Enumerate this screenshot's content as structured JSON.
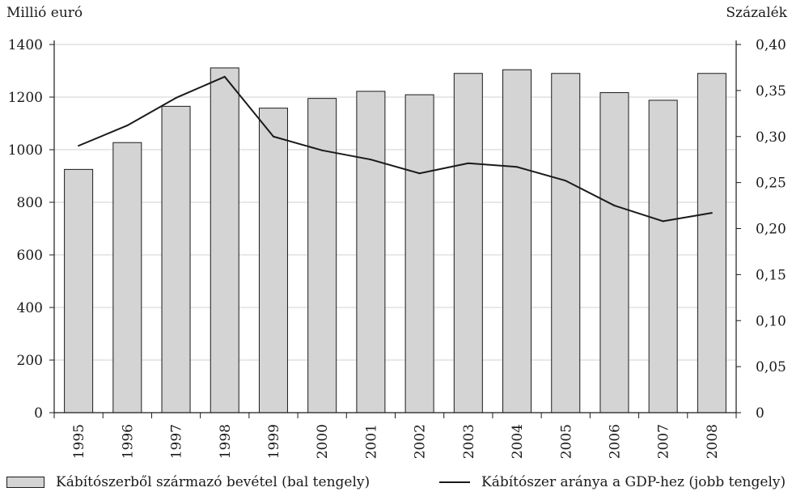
{
  "chart_data": {
    "type": "bar",
    "categories": [
      "1995",
      "1996",
      "1997",
      "1998",
      "1999",
      "2000",
      "2001",
      "2002",
      "2003",
      "2004",
      "2005",
      "2006",
      "2007",
      "2008"
    ],
    "series": [
      {
        "name": "Kábítószerből származó bevétel (bal tengely)",
        "type": "bar",
        "axis": "left",
        "values": [
          925,
          1027,
          1165,
          1311,
          1158,
          1195,
          1222,
          1209,
          1290,
          1304,
          1290,
          1217,
          1188,
          1290
        ]
      },
      {
        "name": "Kábítószer aránya a GDP-hez (jobb tengely)",
        "type": "line",
        "axis": "right",
        "values": [
          0.29,
          0.312,
          0.342,
          0.365,
          0.3,
          0.285,
          0.275,
          0.26,
          0.271,
          0.267,
          0.252,
          0.225,
          0.208,
          0.217
        ]
      }
    ],
    "ylabel": "Millió euró",
    "y2label": "Százalék",
    "ylim": [
      0,
      1400
    ],
    "y2lim": [
      0,
      0.4
    ],
    "yticks": [
      "0",
      "200",
      "400",
      "600",
      "800",
      "1000",
      "1200",
      "1400"
    ],
    "y2ticks": [
      "0",
      "0,05",
      "0,10",
      "0,15",
      "0,20",
      "0,25",
      "0,30",
      "0,35",
      "0,40"
    ],
    "grid": "horizontal",
    "legend_position": "bottom",
    "colors": {
      "bar_fill": "#d4d4d4",
      "bar_stroke": "#1a1a1a",
      "line": "#1a1a1a",
      "grid": "#d0d0d0"
    }
  }
}
